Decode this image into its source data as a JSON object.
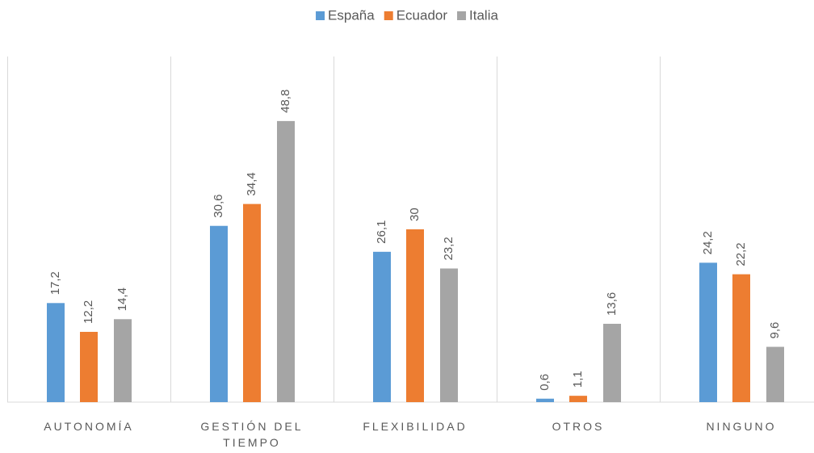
{
  "chart_data": {
    "type": "bar",
    "categories": [
      "AUTONOMÍA",
      "GESTIÓN DEL TIEMPO",
      "FLEXIBILIDAD",
      "OTROS",
      "NINGUNO"
    ],
    "series": [
      {
        "name": "España",
        "color": "#5b9bd5",
        "values": [
          17.2,
          30.6,
          26.1,
          0.6,
          24.2
        ],
        "value_labels": [
          "17,2",
          "30,6",
          "26,1",
          "0,6",
          "24,2"
        ]
      },
      {
        "name": "Ecuador",
        "color": "#ed7d31",
        "values": [
          12.2,
          34.4,
          30,
          1.1,
          22.2
        ],
        "value_labels": [
          "12,2",
          "34,4",
          "30",
          "1,1",
          "22,2"
        ]
      },
      {
        "name": "Italia",
        "color": "#a5a5a5",
        "values": [
          14.4,
          48.8,
          23.2,
          13.6,
          9.6
        ],
        "value_labels": [
          "14,4",
          "48,8",
          "23,2",
          "13,6",
          "9,6"
        ]
      }
    ],
    "ylim": [
      0,
      60
    ],
    "legend": "top"
  }
}
